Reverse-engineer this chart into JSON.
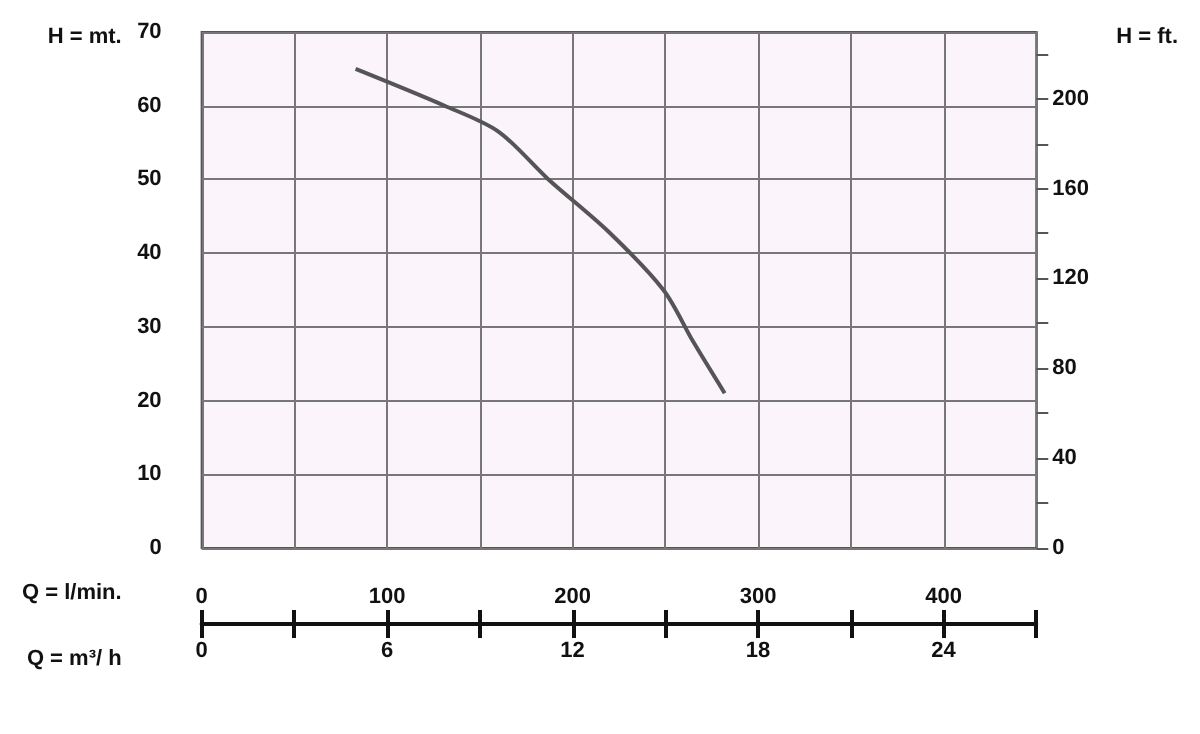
{
  "chart_data": {
    "type": "line",
    "xlabel": "Q = l/min.",
    "x2label": "Q = m³/ h",
    "ylabel": "H = mt.",
    "y2label": "H = ft.",
    "x": [
      83,
      131,
      160,
      187,
      219,
      249,
      265,
      282
    ],
    "series": [
      {
        "color": "#555555",
        "values": [
          65,
          60,
          56.5,
          50,
          43,
          35,
          28,
          21
        ]
      }
    ],
    "xlim": [
      0,
      450
    ],
    "xticks": [
      0,
      {
        "value": 50,
        "label": null
      },
      100,
      {
        "value": 150,
        "label": null
      },
      200,
      {
        "value": 250,
        "label": null
      },
      300,
      {
        "value": 350,
        "label": null
      },
      400,
      {
        "value": 450,
        "label": null
      }
    ],
    "x2lim": [
      0,
      27
    ],
    "x2ticks": [
      0,
      {
        "value": 3,
        "label": null
      },
      6,
      {
        "value": 9,
        "label": null
      },
      12,
      {
        "value": 15,
        "label": null
      },
      18,
      {
        "value": 21,
        "label": null
      },
      24,
      {
        "value": 27,
        "label": null
      }
    ],
    "ylim": [
      0,
      70
    ],
    "yticks": [
      0,
      10,
      20,
      30,
      40,
      50,
      60,
      70
    ],
    "y2lim": [
      0,
      229.66
    ],
    "y2ticks": [
      0,
      {
        "value": 20,
        "label": null
      },
      40,
      {
        "value": 60,
        "label": null
      },
      80,
      {
        "value": 100,
        "label": null
      },
      120,
      {
        "value": 140,
        "label": null
      },
      160,
      {
        "value": 180,
        "label": null
      },
      200,
      {
        "value": 220,
        "label": null
      }
    ],
    "grid": true,
    "marker": "none",
    "line_style": "solid"
  }
}
